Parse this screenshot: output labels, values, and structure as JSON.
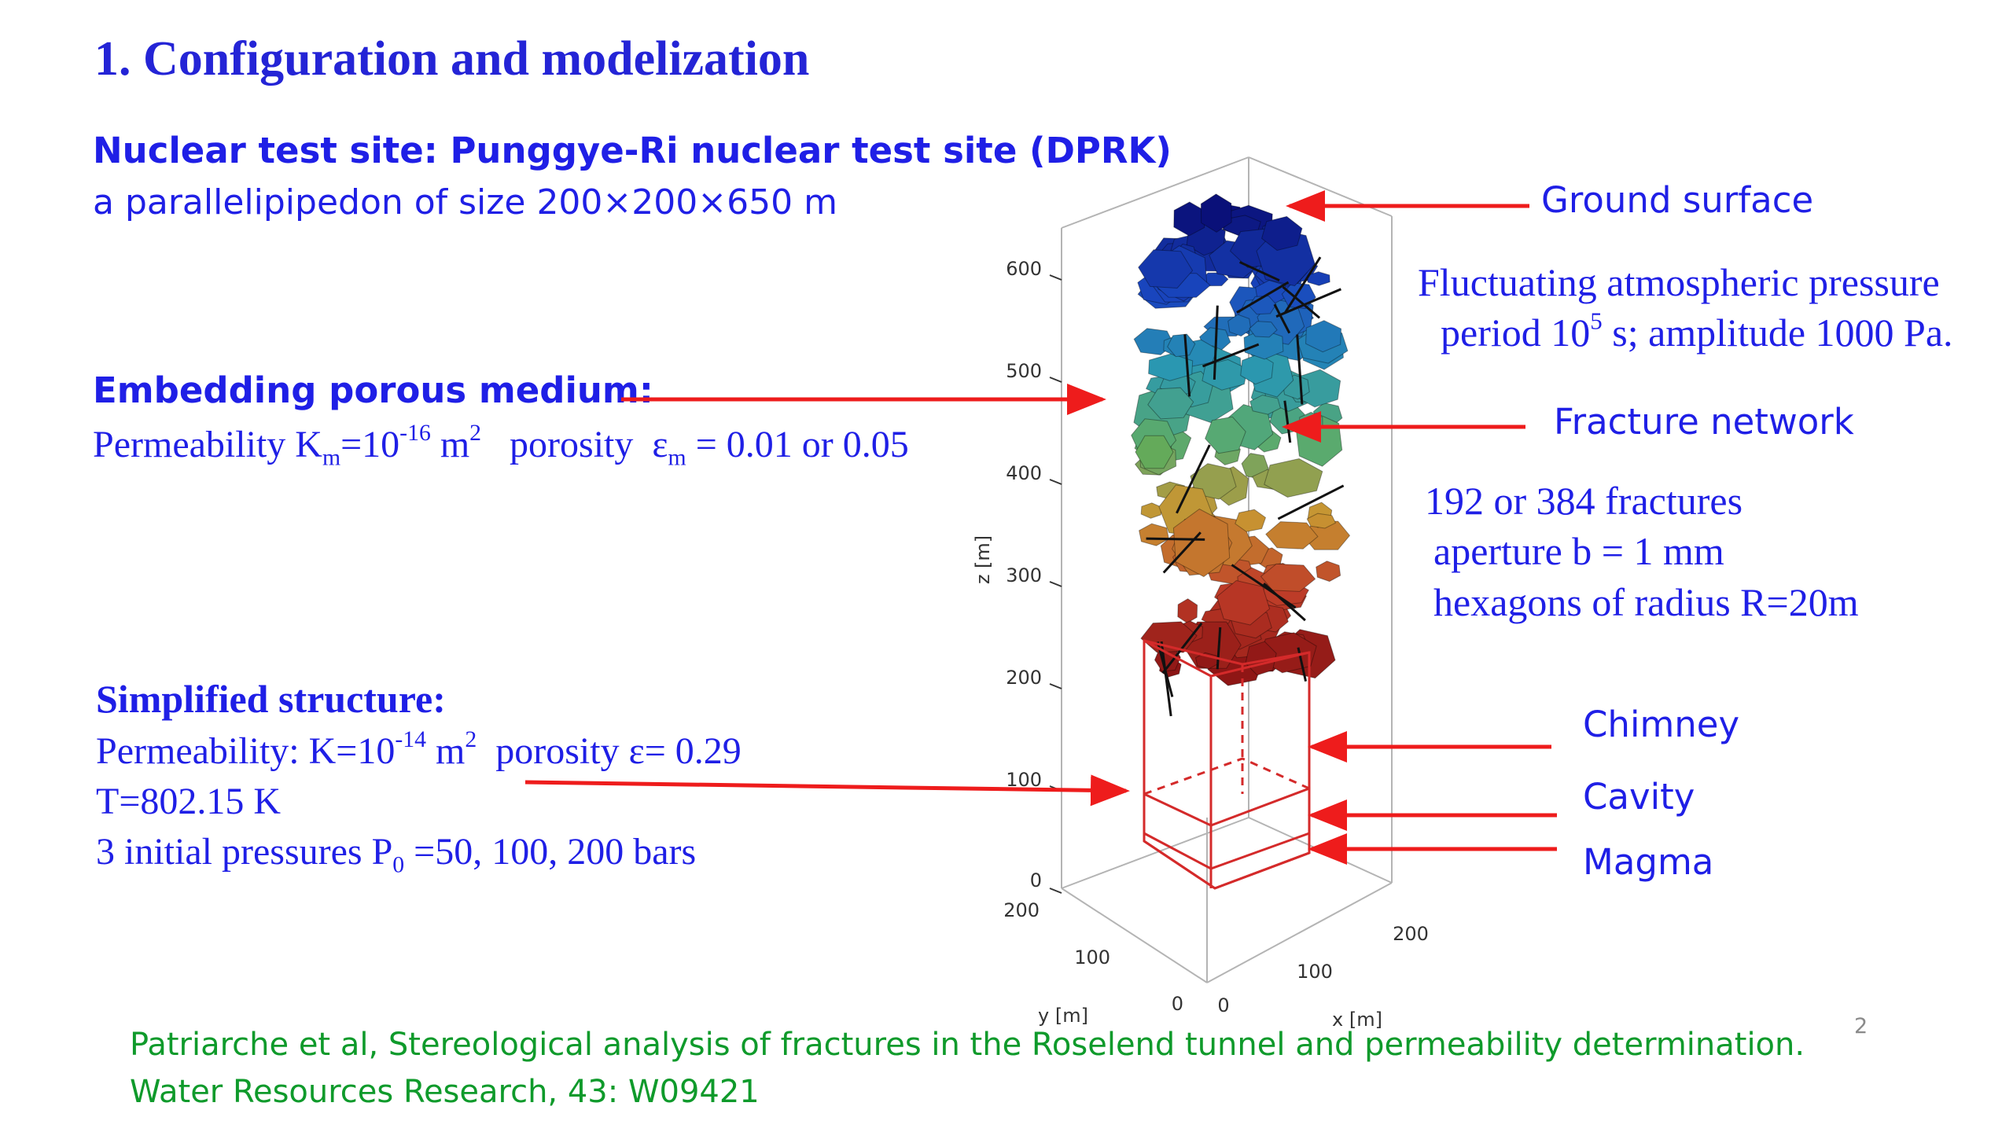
{
  "title": "1.   Configuration and modelization",
  "site": {
    "heading": "Nuclear test site: Punggye-Ri nuclear test site (DPRK)",
    "description": "a parallelipipedon of size 200×200×650 m"
  },
  "embedding": {
    "heading": "Embedding porous medium:",
    "perm_label": "Permeability K",
    "perm_sub": "m",
    "perm_eq": "=10",
    "perm_exp": "-16",
    "perm_unit": " m",
    "perm_unit_exp": "2",
    "porosity_label": "   porosity  ε",
    "porosity_sub": "m",
    "porosity_value": " = 0.01 or 0.05"
  },
  "simplified": {
    "heading": "Simplified structure:",
    "perm_label": "Permeability: K=10",
    "perm_exp": "-14",
    "perm_unit": " m",
    "perm_unit_exp": "2",
    "porosity": "  porosity ε= 0.29",
    "temperature": "T=802.15 K",
    "pressure_label": "3 initial pressures P",
    "pressure_sub": "0",
    "pressure_values": " =50, 100, 200 bars"
  },
  "annotations": {
    "ground_surface": "Ground surface",
    "atm_line1": "Fluctuating atmospheric pressure",
    "atm_line2_a": "period 10",
    "atm_line2_exp": "5",
    "atm_line2_b": " s; amplitude 1000 Pa.",
    "fracture_network": "Fracture network",
    "fractures_line1": "192 or 384 fractures",
    "fractures_line2": "aperture b = 1 mm",
    "fractures_line3": "hexagons of radius R=20m",
    "chimney": "Chimney",
    "cavity": "Cavity",
    "magma": "Magma"
  },
  "plot": {
    "z_label": "z [m]",
    "y_label": "y [m]",
    "x_label": "x [m]",
    "z_ticks": [
      "600",
      "500",
      "400",
      "300",
      "200",
      "100",
      "0"
    ],
    "y_ticks": [
      "200",
      "100",
      "0"
    ],
    "x_ticks": [
      "0",
      "100",
      "200"
    ]
  },
  "reference": {
    "line1": "Patriarche et al, Stereological analysis of fractures in the Roselend tunnel and permeability determination.",
    "line2": "Water Resources Research, 43: W09421"
  },
  "page_number": "2",
  "colors": {
    "title": "#2424d6",
    "body_text": "#1f1fe6",
    "arrow": "#ee1c1c",
    "structure": "#d42a2a",
    "reference": "#0f9a2b"
  }
}
